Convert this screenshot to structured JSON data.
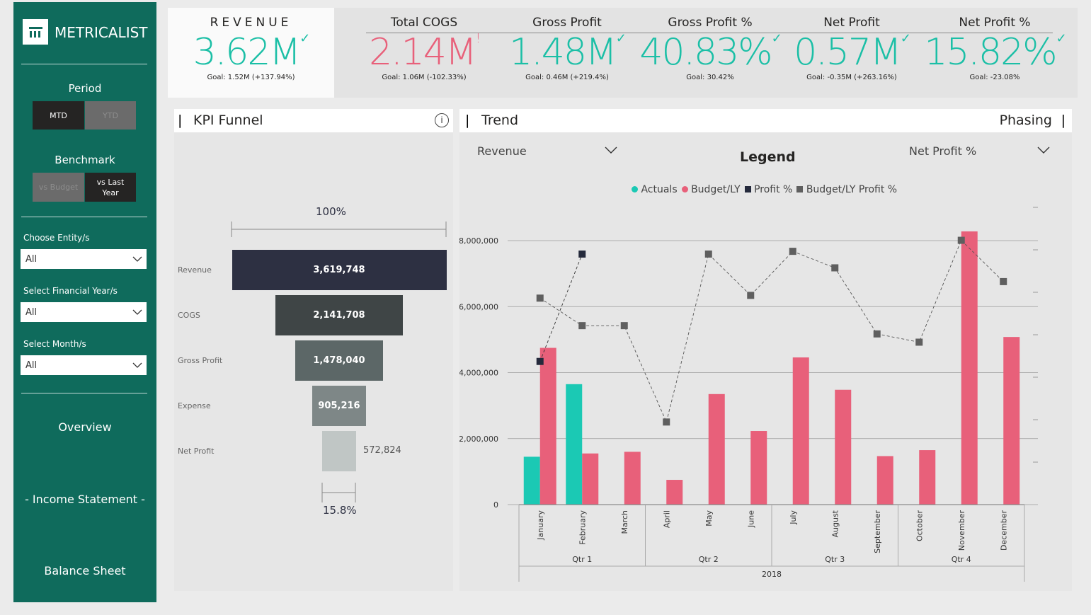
{
  "sidebar": {
    "brand": "METRICALIST",
    "period": {
      "label": "Period",
      "options": [
        "MTD",
        "YTD"
      ],
      "active": "MTD"
    },
    "benchmark": {
      "label": "Benchmark",
      "options": [
        "vs Budget",
        "vs Last Year"
      ],
      "active": "vs Last Year"
    },
    "filters": [
      {
        "label": "Choose Entity/s",
        "value": "All"
      },
      {
        "label": "Select Financial Year/s",
        "value": "All"
      },
      {
        "label": "Select Month/s",
        "value": "All"
      }
    ],
    "nav": [
      "Overview",
      "- Income Statement -",
      "Balance Sheet"
    ]
  },
  "kpis": [
    {
      "title": "REVENUE",
      "value": "3.62M",
      "mark": "✓",
      "goal": "Goal: 1.52M (+137.94%)",
      "color": "#1bbfa6"
    },
    {
      "title": "Total COGS",
      "value": "2.14M",
      "mark": "!",
      "goal": "Goal: 1.06M (-102.33%)",
      "color": "#e8607a"
    },
    {
      "title": "Gross Profit",
      "value": "1.48M",
      "mark": "✓",
      "goal": "Goal: 0.46M (+219.4%)",
      "color": "#1bbfa6"
    },
    {
      "title": "Gross Profit %",
      "value": "40.83%",
      "mark": "✓",
      "goal": "Goal: 30.42%",
      "color": "#1bbfa6"
    },
    {
      "title": "Net Profit",
      "value": "0.57M",
      "mark": "✓",
      "goal": "Goal: -0.35M (+263.16%)",
      "color": "#1bbfa6"
    },
    {
      "title": "Net Profit %",
      "value": "15.82%",
      "mark": "✓",
      "goal": "Goal: -23.08%",
      "color": "#1bbfa6"
    }
  ],
  "funnel": {
    "title": "KPI Funnel",
    "info": "i",
    "top_pct": "100%",
    "bottom_pct": "15.8%",
    "stages": [
      {
        "label": "Revenue",
        "value": "3,619,748",
        "num": 3619748,
        "color": "#2d3042"
      },
      {
        "label": "COGS",
        "value": "2,141,708",
        "num": 2141708,
        "color": "#3f4546"
      },
      {
        "label": "Gross Profit",
        "value": "1,478,040",
        "num": 1478040,
        "color": "#5c6767"
      },
      {
        "label": "Expense",
        "value": "905,216",
        "num": 905216,
        "color": "#7e8787"
      },
      {
        "label": "Net Profit",
        "value": "572,824",
        "num": 572824,
        "color": "#c0c6c5"
      }
    ]
  },
  "trend": {
    "title": "Trend",
    "phasing": "Phasing",
    "dropdown_left": "Revenue",
    "dropdown_right": "Net Profit %",
    "legend_title": "Legend"
  },
  "chart_data": {
    "type": "bar",
    "title": "Trend",
    "categories": [
      "January",
      "February",
      "March",
      "April",
      "May",
      "June",
      "July",
      "August",
      "September",
      "October",
      "November",
      "December"
    ],
    "quarters": [
      "Qtr 1",
      "Qtr 2",
      "Qtr 3",
      "Qtr 4"
    ],
    "year": "2018",
    "y_ticks": [
      "0",
      "2,000,000",
      "4,000,000",
      "6,000,000",
      "8,000,000"
    ],
    "ylim": [
      0,
      8500000
    ],
    "legend": [
      "Actuals",
      "Budget/LY",
      "Profit %",
      "Budget/LY Profit %"
    ],
    "colors": {
      "actuals": "#1bc9b4",
      "budget": "#e8607a",
      "profit": "#252a3c",
      "budget_profit": "#5f5f5f"
    },
    "series": [
      {
        "name": "Actuals",
        "kind": "bar",
        "values": [
          1450000,
          3650000,
          null,
          null,
          null,
          null,
          null,
          null,
          null,
          null,
          null,
          null
        ]
      },
      {
        "name": "Budget/LY",
        "kind": "bar",
        "values": [
          4750000,
          1550000,
          1600000,
          750000,
          3350000,
          2230000,
          4460000,
          3480000,
          1470000,
          1650000,
          8280000,
          5080000
        ]
      },
      {
        "name": "Profit %",
        "kind": "marker",
        "axis": "secondary",
        "values": [
          0.52,
          0.91,
          null,
          null,
          null,
          null,
          null,
          null,
          null,
          null,
          null,
          null
        ]
      },
      {
        "name": "Budget/LY Profit %",
        "kind": "marker",
        "axis": "secondary",
        "values": [
          0.75,
          0.65,
          0.65,
          0.3,
          0.91,
          0.76,
          0.92,
          0.86,
          0.62,
          0.59,
          0.96,
          0.81
        ]
      }
    ]
  }
}
